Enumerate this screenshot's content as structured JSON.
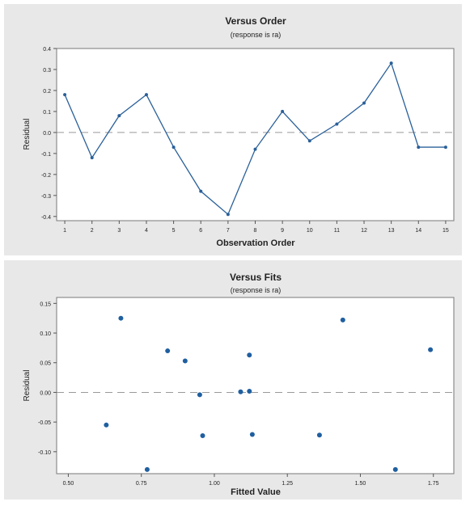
{
  "chart_data": [
    {
      "type": "line",
      "title": "Versus Order",
      "subtitle": "(response is ra)",
      "xlabel": "Observation Order",
      "ylabel": "Residual",
      "x": [
        1,
        2,
        3,
        4,
        5,
        6,
        7,
        8,
        9,
        10,
        11,
        12,
        13,
        14,
        15
      ],
      "series": [
        {
          "values": [
            0.18,
            -0.12,
            0.08,
            0.18,
            -0.07,
            -0.28,
            -0.39,
            -0.08,
            0.1,
            -0.04,
            0.04,
            0.14,
            0.33,
            -0.07,
            -0.07
          ]
        }
      ],
      "xlim": [
        0.7,
        15.3
      ],
      "ylim": [
        -0.42,
        0.4
      ],
      "xticks": [
        1,
        2,
        3,
        4,
        5,
        6,
        7,
        8,
        9,
        10,
        11,
        12,
        13,
        14,
        15
      ],
      "xtick_labels": [
        "1",
        "2",
        "3",
        "4",
        "5",
        "6",
        "7",
        "8",
        "9",
        "10",
        "11",
        "12",
        "13",
        "14",
        "15"
      ],
      "yticks": [
        -0.4,
        -0.3,
        -0.2,
        -0.1,
        0.0,
        0.1,
        0.2,
        0.3,
        0.4
      ],
      "ytick_labels": [
        "-0.4",
        "-0.3",
        "-0.2",
        "-0.1",
        "0.0",
        "0.1",
        "0.2",
        "0.3",
        "0.4"
      ],
      "reference_line": 0,
      "grid": false,
      "color": "#2a6099"
    },
    {
      "type": "scatter",
      "title": "Versus Fits",
      "subtitle": "(response is ra)",
      "xlabel": "Fitted Value",
      "ylabel": "Residual",
      "series": [
        {
          "x": [
            0.63,
            0.68,
            0.77,
            0.84,
            0.9,
            0.95,
            0.96,
            1.09,
            1.12,
            1.12,
            1.13,
            1.36,
            1.44,
            1.62,
            1.74
          ],
          "values": [
            -0.055,
            0.125,
            -0.13,
            0.07,
            0.053,
            -0.004,
            -0.073,
            0.001,
            0.063,
            0.002,
            -0.071,
            -0.072,
            0.122,
            -0.13,
            0.072
          ]
        }
      ],
      "xlim": [
        0.46,
        1.82
      ],
      "ylim": [
        -0.137,
        0.16
      ],
      "xticks": [
        0.5,
        0.75,
        1.0,
        1.25,
        1.5,
        1.75
      ],
      "xtick_labels": [
        "0.50",
        "0.75",
        "1.00",
        "1.25",
        "1.50",
        "1.75"
      ],
      "yticks": [
        -0.1,
        -0.05,
        0.0,
        0.05,
        0.1,
        0.15
      ],
      "ytick_labels": [
        "-0.10",
        "-0.05",
        "0.00",
        "0.05",
        "0.10",
        "0.15"
      ],
      "reference_line": 0,
      "grid": false,
      "color": "#1f5fa0"
    }
  ]
}
